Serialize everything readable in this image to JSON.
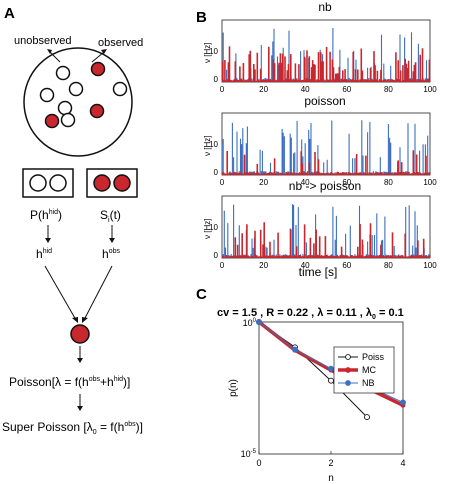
{
  "panels": {
    "a": {
      "letter": "A",
      "unobserved_label": "unobserved",
      "observed_label": "observed",
      "p_hid_text": "P(h",
      "p_hid_sup": "hid",
      "p_hid_close": ")",
      "s_text": "S",
      "s_sub": "i",
      "s_close": "(t)",
      "h_hid": "h",
      "h_hid_sup": "hid",
      "h_obs": "h",
      "h_obs_sup": "obs",
      "poisson_eq": "Poisson[λ = f(h",
      "poisson_sup1": "obs",
      "poisson_mid": "+h",
      "poisson_sup2": "hid",
      "poisson_end": ")]",
      "super_eq": "Super Poisson [λ",
      "super_sub": "0",
      "super_mid": " = f(h",
      "super_sup": "obs",
      "super_end": ")]",
      "colors": {
        "observed": "#c8282d",
        "hidden": "#ffffff",
        "stroke": "#111111"
      }
    },
    "b": {
      "letter": "B",
      "subplots": [
        {
          "title": "nb"
        },
        {
          "title": "poisson"
        },
        {
          "title": "nb -> poisson"
        }
      ],
      "ylabel": "ν [Hz]",
      "xlabel": "time [s]",
      "xticks": [
        "0",
        "20",
        "40",
        "60",
        "80",
        "100"
      ],
      "yticks": [
        "0",
        "10"
      ],
      "colors": {
        "series_a": "#c8282d",
        "series_b": "#3d6fc0"
      }
    },
    "c": {
      "letter": "C",
      "params": "cv = 1.5 , R = 0.22 , λ = 0.11 , λ",
      "params_sub": "0",
      "params_end": " = 0.1"
    }
  },
  "chart_data": {
    "type": "line",
    "ylabel": "p(n)",
    "xlabel": "n",
    "x": [
      0,
      1,
      2,
      3,
      4
    ],
    "xticks": [
      "0",
      "2",
      "4"
    ],
    "ytick_top_base": "10",
    "ytick_top_exp": "0",
    "ytick_bottom_base": "10",
    "ytick_bottom_exp": "-5",
    "yscale": "log",
    "ylim": [
      1e-05,
      1
    ],
    "legend_position": "top-right",
    "series": [
      {
        "name": "Poiss",
        "x": [
          0,
          1,
          2,
          3
        ],
        "values": [
          1.0,
          0.11,
          0.006,
          0.00025
        ],
        "color": "#111111"
      },
      {
        "name": "MC",
        "x": [
          0,
          1,
          2,
          3,
          4
        ],
        "values": [
          1.0,
          0.085,
          0.015,
          0.0032,
          0.0007
        ],
        "color": "#c8282d"
      },
      {
        "name": "NB",
        "x": [
          0,
          1,
          2,
          3,
          4
        ],
        "values": [
          1.0,
          0.09,
          0.017,
          0.0038,
          0.0009
        ],
        "color": "#3d6fc0"
      }
    ]
  }
}
